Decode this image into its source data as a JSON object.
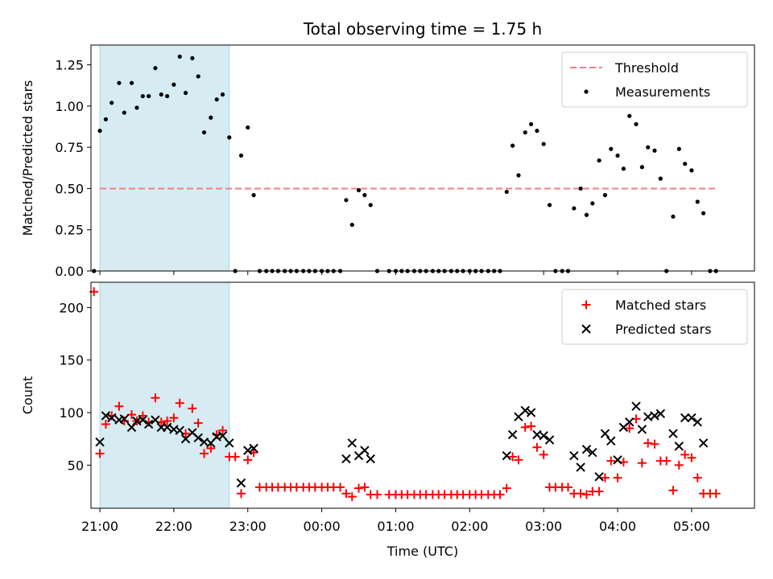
{
  "title": "Total observing time = 1.75 h",
  "colors": {
    "threshold": "#f08080",
    "measurements": "#000000",
    "matched": "#ff0000",
    "predicted": "#000000",
    "shade": "#add8e6"
  },
  "chart_data": [
    {
      "type": "scatter",
      "panel": "top",
      "ylabel": "Matched/Predicted stars",
      "xlabel": "",
      "xlim": [
        -0.12,
        8.85
      ],
      "ylim": [
        0,
        1.37
      ],
      "yticks": [
        0.0,
        0.25,
        0.5,
        0.75,
        1.0,
        1.25
      ],
      "ytick_labels": [
        "0.00",
        "0.25",
        "0.50",
        "0.75",
        "1.00",
        "1.25"
      ],
      "shaded_span_hours": [
        0.0,
        1.75
      ],
      "threshold": {
        "name": "Threshold",
        "value": 0.5,
        "x": [
          0.0,
          8.35
        ]
      },
      "legend": {
        "placement": "top-right",
        "entries": [
          "Threshold",
          "Measurements"
        ]
      },
      "series": [
        {
          "name": "Measurements",
          "points": [
            [
              -0.08,
              0
            ],
            [
              0.0,
              0.85
            ],
            [
              0.08,
              0.92
            ],
            [
              0.16,
              1.02
            ],
            [
              0.26,
              1.14
            ],
            [
              0.33,
              0.96
            ],
            [
              0.43,
              1.14
            ],
            [
              0.5,
              0.99
            ],
            [
              0.58,
              1.06
            ],
            [
              0.66,
              1.06
            ],
            [
              0.75,
              1.23
            ],
            [
              0.83,
              1.07
            ],
            [
              0.91,
              1.06
            ],
            [
              1.0,
              1.13
            ],
            [
              1.08,
              1.3
            ],
            [
              1.16,
              1.08
            ],
            [
              1.25,
              1.29
            ],
            [
              1.33,
              1.18
            ],
            [
              1.41,
              0.84
            ],
            [
              1.5,
              0.93
            ],
            [
              1.58,
              1.04
            ],
            [
              1.66,
              1.07
            ],
            [
              1.75,
              0.81
            ],
            [
              1.83,
              0
            ],
            [
              1.91,
              0.7
            ],
            [
              2.0,
              0.87
            ],
            [
              2.08,
              0.46
            ],
            [
              2.16,
              0
            ],
            [
              2.25,
              0
            ],
            [
              2.33,
              0
            ],
            [
              2.41,
              0
            ],
            [
              2.5,
              0
            ],
            [
              2.58,
              0
            ],
            [
              2.66,
              0
            ],
            [
              2.75,
              0
            ],
            [
              2.83,
              0
            ],
            [
              2.91,
              0
            ],
            [
              3.0,
              0
            ],
            [
              3.08,
              0
            ],
            [
              3.16,
              0
            ],
            [
              3.25,
              0
            ],
            [
              3.33,
              0.43
            ],
            [
              3.41,
              0.28
            ],
            [
              3.5,
              0.49
            ],
            [
              3.58,
              0.46
            ],
            [
              3.66,
              0.4
            ],
            [
              3.75,
              0
            ],
            [
              3.91,
              0
            ],
            [
              4.0,
              0
            ],
            [
              4.08,
              0
            ],
            [
              4.16,
              0
            ],
            [
              4.25,
              0
            ],
            [
              4.33,
              0
            ],
            [
              4.41,
              0
            ],
            [
              4.5,
              0
            ],
            [
              4.58,
              0
            ],
            [
              4.66,
              0
            ],
            [
              4.75,
              0
            ],
            [
              4.83,
              0
            ],
            [
              4.91,
              0
            ],
            [
              5.0,
              0
            ],
            [
              5.08,
              0
            ],
            [
              5.16,
              0
            ],
            [
              5.25,
              0
            ],
            [
              5.33,
              0
            ],
            [
              5.41,
              0
            ],
            [
              5.5,
              0.48
            ],
            [
              5.58,
              0.76
            ],
            [
              5.66,
              0.58
            ],
            [
              5.75,
              0.84
            ],
            [
              5.83,
              0.89
            ],
            [
              5.91,
              0.85
            ],
            [
              6.0,
              0.77
            ],
            [
              6.08,
              0.4
            ],
            [
              6.16,
              0
            ],
            [
              6.25,
              0
            ],
            [
              6.33,
              0
            ],
            [
              6.41,
              0.38
            ],
            [
              6.5,
              0.5
            ],
            [
              6.58,
              0.34
            ],
            [
              6.66,
              0.41
            ],
            [
              6.75,
              0.67
            ],
            [
              6.83,
              0.46
            ],
            [
              6.91,
              0.74
            ],
            [
              7.0,
              0.7
            ],
            [
              7.08,
              0.62
            ],
            [
              7.16,
              0.94
            ],
            [
              7.25,
              0.89
            ],
            [
              7.33,
              0.63
            ],
            [
              7.41,
              0.75
            ],
            [
              7.5,
              0.73
            ],
            [
              7.58,
              0.56
            ],
            [
              7.66,
              0
            ],
            [
              7.75,
              0.33
            ],
            [
              7.83,
              0.74
            ],
            [
              7.91,
              0.65
            ],
            [
              8.0,
              0.61
            ],
            [
              8.08,
              0.42
            ],
            [
              8.16,
              0.35
            ],
            [
              8.25,
              0
            ],
            [
              8.33,
              0
            ]
          ]
        }
      ]
    },
    {
      "type": "scatter",
      "panel": "bottom",
      "ylabel": "Count",
      "xlabel": "Time (UTC)",
      "xlim": [
        -0.12,
        8.85
      ],
      "ylim": [
        9,
        224
      ],
      "yticks": [
        50,
        100,
        150,
        200
      ],
      "ytick_labels": [
        "50",
        "100",
        "150",
        "200"
      ],
      "xticks": [
        0,
        1,
        2,
        3,
        4,
        5,
        6,
        7,
        8
      ],
      "xtick_labels": [
        "21:00",
        "22:00",
        "23:00",
        "00:00",
        "01:00",
        "02:00",
        "03:00",
        "04:00",
        "05:00"
      ],
      "shaded_span_hours": [
        0.0,
        1.75
      ],
      "legend": {
        "placement": "top-right",
        "entries": [
          "Matched stars",
          "Predicted stars"
        ]
      },
      "series": [
        {
          "name": "Matched stars",
          "marker": "plus",
          "points": [
            [
              -0.08,
              215
            ],
            [
              0.0,
              61
            ],
            [
              0.08,
              89
            ],
            [
              0.16,
              97
            ],
            [
              0.26,
              106
            ],
            [
              0.33,
              92
            ],
            [
              0.43,
              98
            ],
            [
              0.5,
              92
            ],
            [
              0.58,
              97
            ],
            [
              0.66,
              91
            ],
            [
              0.75,
              114
            ],
            [
              0.83,
              91
            ],
            [
              0.91,
              92
            ],
            [
              1.0,
              95
            ],
            [
              1.08,
              109
            ],
            [
              1.16,
              80
            ],
            [
              1.25,
              104
            ],
            [
              1.33,
              90
            ],
            [
              1.41,
              61
            ],
            [
              1.5,
              66
            ],
            [
              1.58,
              79
            ],
            [
              1.66,
              83
            ],
            [
              1.75,
              58
            ],
            [
              1.83,
              58
            ],
            [
              1.91,
              23
            ],
            [
              2.0,
              55
            ],
            [
              2.08,
              62
            ],
            [
              2.16,
              29
            ],
            [
              2.25,
              29
            ],
            [
              2.33,
              29
            ],
            [
              2.41,
              29
            ],
            [
              2.5,
              29
            ],
            [
              2.58,
              29
            ],
            [
              2.66,
              29
            ],
            [
              2.75,
              29
            ],
            [
              2.83,
              29
            ],
            [
              2.91,
              29
            ],
            [
              3.0,
              29
            ],
            [
              3.08,
              29
            ],
            [
              3.16,
              29
            ],
            [
              3.25,
              29
            ],
            [
              3.33,
              23
            ],
            [
              3.41,
              20
            ],
            [
              3.5,
              28
            ],
            [
              3.58,
              29
            ],
            [
              3.66,
              22
            ],
            [
              3.75,
              22
            ],
            [
              3.91,
              22
            ],
            [
              4.0,
              22
            ],
            [
              4.08,
              22
            ],
            [
              4.16,
              22
            ],
            [
              4.25,
              22
            ],
            [
              4.33,
              22
            ],
            [
              4.41,
              22
            ],
            [
              4.5,
              22
            ],
            [
              4.58,
              22
            ],
            [
              4.66,
              22
            ],
            [
              4.75,
              22
            ],
            [
              4.83,
              22
            ],
            [
              4.91,
              22
            ],
            [
              5.0,
              22
            ],
            [
              5.08,
              22
            ],
            [
              5.16,
              22
            ],
            [
              5.25,
              22
            ],
            [
              5.33,
              22
            ],
            [
              5.41,
              22
            ],
            [
              5.5,
              28
            ],
            [
              5.58,
              58
            ],
            [
              5.66,
              55
            ],
            [
              5.75,
              86
            ],
            [
              5.83,
              87
            ],
            [
              5.91,
              67
            ],
            [
              6.0,
              60
            ],
            [
              6.08,
              29
            ],
            [
              6.16,
              29
            ],
            [
              6.25,
              29
            ],
            [
              6.33,
              29
            ],
            [
              6.41,
              23
            ],
            [
              6.5,
              23
            ],
            [
              6.58,
              22
            ],
            [
              6.66,
              25
            ],
            [
              6.75,
              25
            ],
            [
              6.83,
              38
            ],
            [
              6.91,
              54
            ],
            [
              7.0,
              38
            ],
            [
              7.08,
              53
            ],
            [
              7.16,
              85
            ],
            [
              7.25,
              94
            ],
            [
              7.33,
              52
            ],
            [
              7.41,
              71
            ],
            [
              7.5,
              70
            ],
            [
              7.58,
              54
            ],
            [
              7.66,
              54
            ],
            [
              7.75,
              26
            ],
            [
              7.83,
              50
            ],
            [
              7.91,
              60
            ],
            [
              8.0,
              57
            ],
            [
              8.08,
              38
            ],
            [
              8.16,
              23
            ],
            [
              8.25,
              23
            ],
            [
              8.33,
              23
            ]
          ]
        },
        {
          "name": "Predicted stars",
          "marker": "x",
          "points": [
            [
              0.0,
              72
            ],
            [
              0.08,
              97
            ],
            [
              0.16,
              95
            ],
            [
              0.26,
              93
            ],
            [
              0.33,
              94
            ],
            [
              0.43,
              86
            ],
            [
              0.5,
              92
            ],
            [
              0.58,
              93
            ],
            [
              0.66,
              89
            ],
            [
              0.75,
              93
            ],
            [
              0.83,
              86
            ],
            [
              0.91,
              86
            ],
            [
              1.0,
              84
            ],
            [
              1.08,
              83
            ],
            [
              1.16,
              75
            ],
            [
              1.25,
              81
            ],
            [
              1.33,
              76
            ],
            [
              1.41,
              72
            ],
            [
              1.5,
              71
            ],
            [
              1.58,
              77
            ],
            [
              1.66,
              78
            ],
            [
              1.75,
              71
            ],
            [
              1.91,
              33
            ],
            [
              2.0,
              64
            ],
            [
              2.08,
              66
            ],
            [
              3.33,
              56
            ],
            [
              3.41,
              71
            ],
            [
              3.5,
              59
            ],
            [
              3.58,
              64
            ],
            [
              3.66,
              56
            ],
            [
              5.5,
              59
            ],
            [
              5.58,
              79
            ],
            [
              5.66,
              96
            ],
            [
              5.75,
              102
            ],
            [
              5.83,
              100
            ],
            [
              5.91,
              79
            ],
            [
              6.0,
              78
            ],
            [
              6.08,
              74
            ],
            [
              6.41,
              59
            ],
            [
              6.5,
              48
            ],
            [
              6.58,
              65
            ],
            [
              6.66,
              62
            ],
            [
              6.75,
              39
            ],
            [
              6.83,
              80
            ],
            [
              6.91,
              73
            ],
            [
              7.0,
              55
            ],
            [
              7.08,
              86
            ],
            [
              7.16,
              91
            ],
            [
              7.25,
              106
            ],
            [
              7.33,
              84
            ],
            [
              7.41,
              96
            ],
            [
              7.5,
              97
            ],
            [
              7.58,
              99
            ],
            [
              7.75,
              80
            ],
            [
              7.83,
              68
            ],
            [
              7.91,
              95
            ],
            [
              8.0,
              95
            ],
            [
              8.08,
              91
            ],
            [
              8.16,
              71
            ]
          ]
        }
      ]
    }
  ]
}
